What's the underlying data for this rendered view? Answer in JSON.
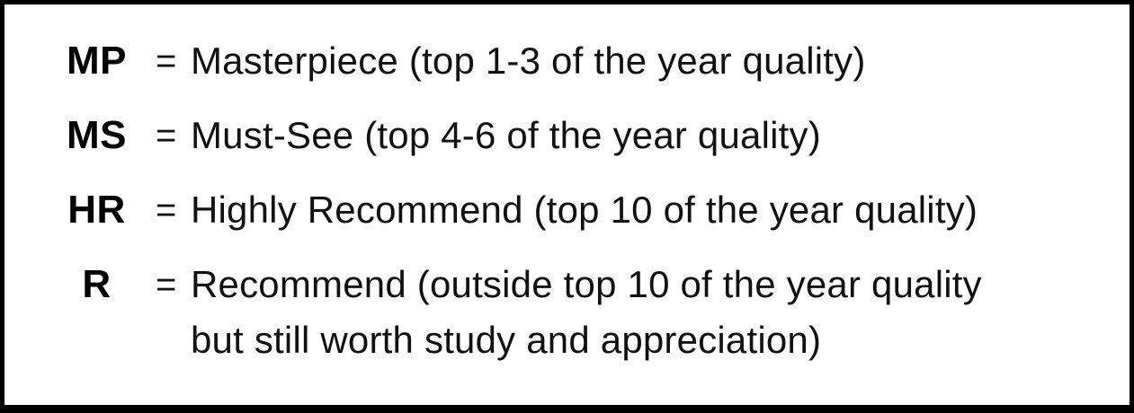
{
  "legend": {
    "colors": {
      "border": "#000000",
      "text": "#111111",
      "background": "#ffffff"
    },
    "entries": [
      {
        "abbr": "MP",
        "eq": "=",
        "description": "Masterpiece (top 1-3 of the year quality)"
      },
      {
        "abbr": "MS",
        "eq": "=",
        "description": "Must-See (top 4-6 of the year quality)"
      },
      {
        "abbr": "HR",
        "eq": "=",
        "description": "Highly Recommend (top 10 of the year quality)"
      },
      {
        "abbr": "R",
        "eq": "=",
        "description": "Recommend (outside top 10 of the year quality\nbut still worth study and appreciation)"
      }
    ]
  }
}
